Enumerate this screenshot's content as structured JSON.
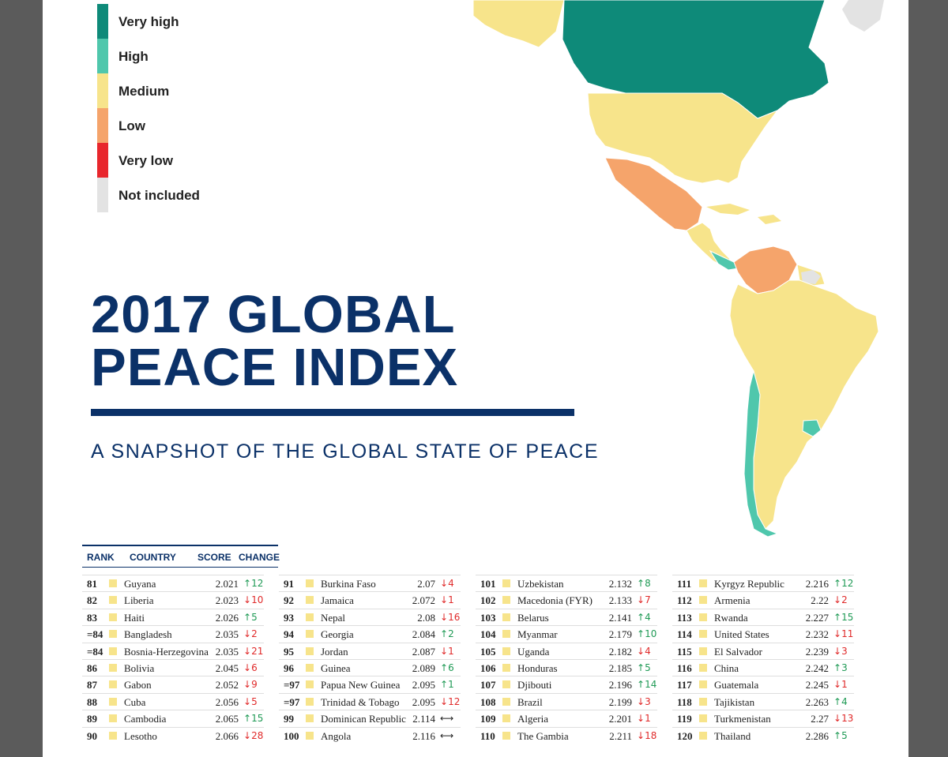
{
  "legend": [
    {
      "label": "Very high",
      "color": "#0e8a79"
    },
    {
      "label": "High",
      "color": "#4fc7ac"
    },
    {
      "label": "Medium",
      "color": "#f7e48b"
    },
    {
      "label": "Low",
      "color": "#f5a46b"
    },
    {
      "label": "Very low",
      "color": "#e8262c"
    },
    {
      "label": "Not included",
      "color": "#e3e3e3"
    }
  ],
  "title": {
    "line1": "2017 GLOBAL",
    "line2": "PEACE INDEX",
    "subtitle": "A SNAPSHOT OF THE GLOBAL STATE OF PEACE"
  },
  "table": {
    "headers": {
      "rank": "RANK",
      "country": "COUNTRY",
      "score": "SCORE",
      "change": "CHANGE"
    },
    "columns": [
      [
        {
          "rank": "81",
          "country": "Guyana",
          "score": "2.021",
          "dir": "up",
          "change": "12"
        },
        {
          "rank": "82",
          "country": "Liberia",
          "score": "2.023",
          "dir": "down",
          "change": "10"
        },
        {
          "rank": "83",
          "country": "Haiti",
          "score": "2.026",
          "dir": "up",
          "change": "5"
        },
        {
          "rank": "=84",
          "country": "Bangladesh",
          "score": "2.035",
          "dir": "down",
          "change": "2"
        },
        {
          "rank": "=84",
          "country": "Bosnia-Herzegovina",
          "score": "2.035",
          "dir": "down",
          "change": "21"
        },
        {
          "rank": "86",
          "country": "Bolivia",
          "score": "2.045",
          "dir": "down",
          "change": "6"
        },
        {
          "rank": "87",
          "country": "Gabon",
          "score": "2.052",
          "dir": "down",
          "change": "9"
        },
        {
          "rank": "88",
          "country": "Cuba",
          "score": "2.056",
          "dir": "down",
          "change": "5"
        },
        {
          "rank": "89",
          "country": "Cambodia",
          "score": "2.065",
          "dir": "up",
          "change": "15"
        },
        {
          "rank": "90",
          "country": "Lesotho",
          "score": "2.066",
          "dir": "down",
          "change": "28"
        }
      ],
      [
        {
          "rank": "91",
          "country": "Burkina Faso",
          "score": "2.07",
          "dir": "down",
          "change": "4"
        },
        {
          "rank": "92",
          "country": "Jamaica",
          "score": "2.072",
          "dir": "down",
          "change": "1"
        },
        {
          "rank": "93",
          "country": "Nepal",
          "score": "2.08",
          "dir": "down",
          "change": "16"
        },
        {
          "rank": "94",
          "country": "Georgia",
          "score": "2.084",
          "dir": "up",
          "change": "2"
        },
        {
          "rank": "95",
          "country": "Jordan",
          "score": "2.087",
          "dir": "down",
          "change": "1"
        },
        {
          "rank": "96",
          "country": "Guinea",
          "score": "2.089",
          "dir": "up",
          "change": "6"
        },
        {
          "rank": "=97",
          "country": "Papua New Guinea",
          "score": "2.095",
          "dir": "up",
          "change": "1"
        },
        {
          "rank": "=97",
          "country": "Trinidad & Tobago",
          "score": "2.095",
          "dir": "down",
          "change": "12"
        },
        {
          "rank": "99",
          "country": "Dominican Republic",
          "score": "2.114",
          "dir": "same",
          "change": ""
        },
        {
          "rank": "100",
          "country": "Angola",
          "score": "2.116",
          "dir": "same",
          "change": ""
        }
      ],
      [
        {
          "rank": "101",
          "country": "Uzbekistan",
          "score": "2.132",
          "dir": "up",
          "change": "8"
        },
        {
          "rank": "102",
          "country": "Macedonia (FYR)",
          "score": "2.133",
          "dir": "down",
          "change": "7"
        },
        {
          "rank": "103",
          "country": "Belarus",
          "score": "2.141",
          "dir": "up",
          "change": "4"
        },
        {
          "rank": "104",
          "country": "Myanmar",
          "score": "2.179",
          "dir": "up",
          "change": "10"
        },
        {
          "rank": "105",
          "country": "Uganda",
          "score": "2.182",
          "dir": "down",
          "change": "4"
        },
        {
          "rank": "106",
          "country": "Honduras",
          "score": "2.185",
          "dir": "up",
          "change": "5"
        },
        {
          "rank": "107",
          "country": "Djibouti",
          "score": "2.196",
          "dir": "up",
          "change": "14"
        },
        {
          "rank": "108",
          "country": "Brazil",
          "score": "2.199",
          "dir": "down",
          "change": "3"
        },
        {
          "rank": "109",
          "country": "Algeria",
          "score": "2.201",
          "dir": "down",
          "change": "1"
        },
        {
          "rank": "110",
          "country": "The Gambia",
          "score": "2.211",
          "dir": "down",
          "change": "18"
        }
      ],
      [
        {
          "rank": "111",
          "country": "Kyrgyz Republic",
          "score": "2.216",
          "dir": "up",
          "change": "12"
        },
        {
          "rank": "112",
          "country": "Armenia",
          "score": "2.22",
          "dir": "down",
          "change": "2"
        },
        {
          "rank": "113",
          "country": "Rwanda",
          "score": "2.227",
          "dir": "up",
          "change": "15"
        },
        {
          "rank": "114",
          "country": "United States",
          "score": "2.232",
          "dir": "down",
          "change": "11"
        },
        {
          "rank": "115",
          "country": "El Salvador",
          "score": "2.239",
          "dir": "down",
          "change": "3"
        },
        {
          "rank": "116",
          "country": "China",
          "score": "2.242",
          "dir": "up",
          "change": "3"
        },
        {
          "rank": "117",
          "country": "Guatemala",
          "score": "2.245",
          "dir": "down",
          "change": "1"
        },
        {
          "rank": "118",
          "country": "Tajikistan",
          "score": "2.263",
          "dir": "up",
          "change": "4"
        },
        {
          "rank": "119",
          "country": "Turkmenistan",
          "score": "2.27",
          "dir": "down",
          "change": "13"
        },
        {
          "rank": "120",
          "country": "Thailand",
          "score": "2.286",
          "dir": "up",
          "change": "5"
        }
      ]
    ]
  }
}
